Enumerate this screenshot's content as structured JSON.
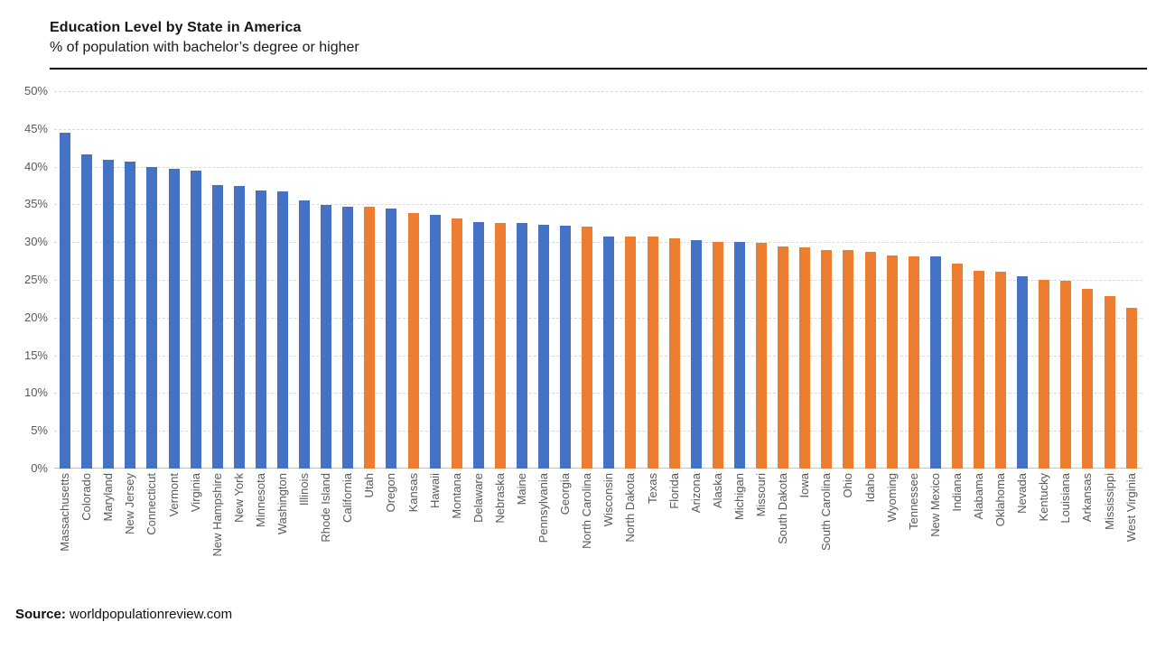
{
  "header": {
    "title": "Education Level by State in America",
    "subtitle": "% of population with bachelor’s degree or higher"
  },
  "source": {
    "label": "Source:",
    "text": " worldpopulationreview.com"
  },
  "colors": {
    "blue": "#4472C4",
    "orange": "#ED7D31",
    "gridline": "#D9D9D9",
    "axis_line": "#C6C6C6",
    "axis_text": "#595959"
  },
  "chart_data": {
    "type": "bar",
    "title": "Education Level by State in America",
    "subtitle": "% of population with bachelor’s degree or higher",
    "xlabel": "",
    "ylabel": "",
    "ylim": [
      0,
      50
    ],
    "ytick_step": 5,
    "ytick_labels": [
      "50%",
      "45%",
      "40%",
      "35%",
      "30%",
      "25%",
      "20%",
      "15%",
      "10%",
      "5%",
      "0%"
    ],
    "grid": "horizontal-dashed",
    "legend": "none",
    "categories": [
      "Massachusetts",
      "Colorado",
      "Maryland",
      "New Jersey",
      "Connecticut",
      "Vermont",
      "Virginia",
      "New Hampshire",
      "New York",
      "Minnesota",
      "Washington",
      "Illinois",
      "Rhode Island",
      "California",
      "Utah",
      "Oregon",
      "Kansas",
      "Hawaii",
      "Montana",
      "Delaware",
      "Nebraska",
      "Maine",
      "Pennsylvania",
      "Georgia",
      "North Carolina",
      "Wisconsin",
      "North Dakota",
      "Texas",
      "Florida",
      "Arizona",
      "Alaska",
      "Michigan",
      "Missouri",
      "South Dakota",
      "Iowa",
      "South Carolina",
      "Ohio",
      "Idaho",
      "Wyoming",
      "Tennessee",
      "New Mexico",
      "Indiana",
      "Alabama",
      "Oklahoma",
      "Nevada",
      "Kentucky",
      "Louisiana",
      "Arkansas",
      "Mississippi",
      "West Virginia"
    ],
    "values": [
      44.5,
      41.6,
      40.9,
      40.7,
      40.0,
      39.7,
      39.5,
      37.6,
      37.5,
      36.8,
      36.7,
      35.5,
      34.9,
      34.7,
      34.7,
      34.4,
      33.9,
      33.6,
      33.1,
      32.7,
      32.5,
      32.5,
      32.3,
      32.2,
      32.0,
      30.8,
      30.7,
      30.7,
      30.5,
      30.3,
      30.0,
      30.0,
      29.9,
      29.4,
      29.3,
      29.0,
      28.9,
      28.7,
      28.2,
      28.1,
      28.1,
      27.2,
      26.2,
      26.1,
      25.5,
      25.0,
      24.9,
      23.8,
      22.8,
      21.3
    ],
    "bar_colors": [
      "blue",
      "blue",
      "blue",
      "blue",
      "blue",
      "blue",
      "blue",
      "blue",
      "blue",
      "blue",
      "blue",
      "blue",
      "blue",
      "blue",
      "orange",
      "blue",
      "orange",
      "blue",
      "orange",
      "blue",
      "orange",
      "blue",
      "blue",
      "blue",
      "orange",
      "blue",
      "orange",
      "orange",
      "orange",
      "blue",
      "orange",
      "blue",
      "orange",
      "orange",
      "orange",
      "orange",
      "orange",
      "orange",
      "orange",
      "orange",
      "blue",
      "orange",
      "orange",
      "orange",
      "blue",
      "orange",
      "orange",
      "orange",
      "orange",
      "orange"
    ]
  }
}
